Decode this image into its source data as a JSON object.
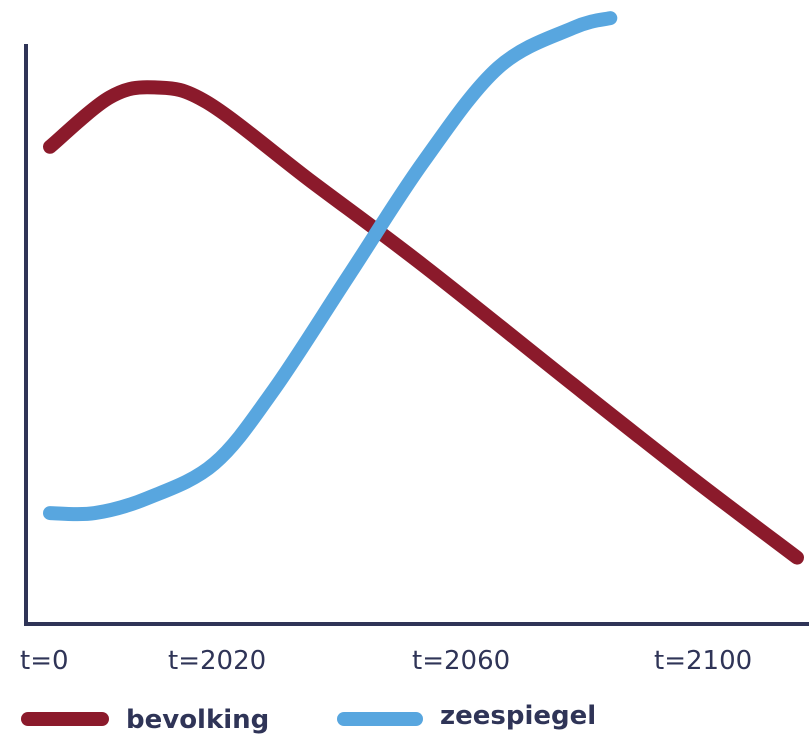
{
  "chart_data": {
    "type": "line",
    "title": "",
    "xlabel": "",
    "ylabel": "",
    "x_ticks": [
      "t=0",
      "t=2020",
      "t=2060",
      "t=2100"
    ],
    "series": [
      {
        "name": "bevolking",
        "color": "#8b1a2b",
        "points": [
          [
            0,
            0.76
          ],
          [
            0.08,
            0.86
          ],
          [
            0.14,
            0.88
          ],
          [
            0.21,
            0.85
          ],
          [
            0.35,
            0.69
          ],
          [
            0.5,
            0.52
          ],
          [
            0.7,
            0.28
          ],
          [
            0.86,
            0.09
          ],
          [
            1.0,
            -0.07
          ]
        ]
      },
      {
        "name": "zeespiegel",
        "color": "#58a6df",
        "points": [
          [
            0,
            0.02
          ],
          [
            0.06,
            0.02
          ],
          [
            0.13,
            0.05
          ],
          [
            0.22,
            0.12
          ],
          [
            0.3,
            0.27
          ],
          [
            0.4,
            0.5
          ],
          [
            0.5,
            0.73
          ],
          [
            0.6,
            0.92
          ],
          [
            0.7,
            1.0
          ],
          [
            0.75,
            1.02
          ]
        ]
      }
    ],
    "grid": false,
    "legend_position": "bottom",
    "axis_color": "#2f3457"
  }
}
